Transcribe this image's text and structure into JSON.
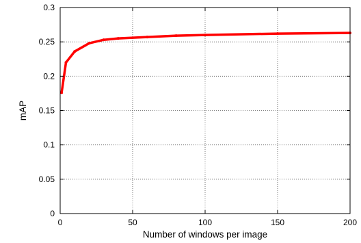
{
  "chart_data": {
    "type": "line",
    "xlabel": "Number of windows per image",
    "ylabel": "mAP",
    "xlim": [
      0,
      200
    ],
    "ylim": [
      0,
      0.3
    ],
    "xticks": [
      0,
      50,
      100,
      150,
      200
    ],
    "yticks": [
      0,
      0.05,
      0.1,
      0.15,
      0.2,
      0.25,
      0.3
    ],
    "xtick_labels": [
      "0",
      "50",
      "100",
      "150",
      "200"
    ],
    "ytick_labels": [
      "0",
      "0.05",
      "0.1",
      "0.15",
      "0.2",
      "0.25",
      "0.3"
    ],
    "grid": true,
    "grid_style": "dotted",
    "series": [
      {
        "color": "#ff0000",
        "x": [
          1,
          4,
          10,
          20,
          30,
          40,
          60,
          80,
          100,
          150,
          200
        ],
        "y": [
          0.176,
          0.22,
          0.236,
          0.248,
          0.253,
          0.255,
          0.257,
          0.259,
          0.26,
          0.262,
          0.263
        ]
      }
    ]
  }
}
